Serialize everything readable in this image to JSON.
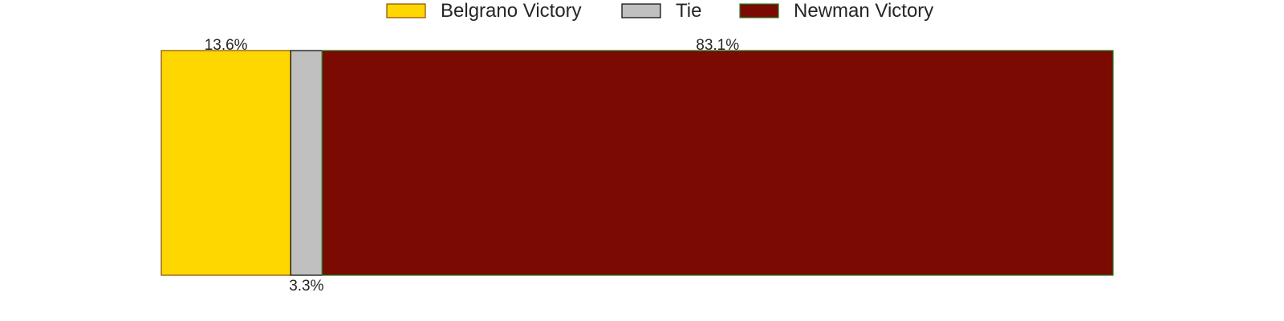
{
  "chart_data": {
    "type": "bar",
    "orientation": "horizontal-stacked",
    "categories": [
      "Belgrano Victory",
      "Tie",
      "Newman Victory"
    ],
    "values": [
      13.6,
      3.3,
      83.1
    ],
    "labels": [
      "13.6%",
      "3.3%",
      "83.1%"
    ],
    "colors": [
      "#FFD700",
      "#C0C0C0",
      "#7B0A02"
    ],
    "edge_colors": [
      "#8B4A00",
      "#000000",
      "#1F7A1F"
    ],
    "xlim": [
      0,
      100
    ],
    "legend_placement": "top-center",
    "grid": false
  }
}
